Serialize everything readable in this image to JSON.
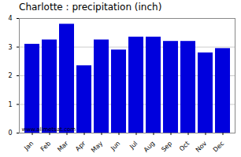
{
  "chart_data": {
    "type": "bar",
    "title": "Charlotte : precipitation (inch)",
    "categories": [
      "Jan",
      "Feb",
      "Mar",
      "Apr",
      "May",
      "Jun",
      "Jul",
      "Aug",
      "Sep",
      "Oct",
      "Nov",
      "Dec"
    ],
    "values": [
      3.1,
      3.25,
      3.8,
      2.35,
      3.25,
      2.9,
      3.35,
      3.35,
      3.2,
      3.2,
      2.8,
      2.95
    ],
    "color": "#0000dd",
    "ylim": [
      0,
      4
    ],
    "yticks": [
      0,
      1,
      2,
      3,
      4
    ],
    "grid": true,
    "annotations": [
      "www.allmetsat.com"
    ]
  }
}
